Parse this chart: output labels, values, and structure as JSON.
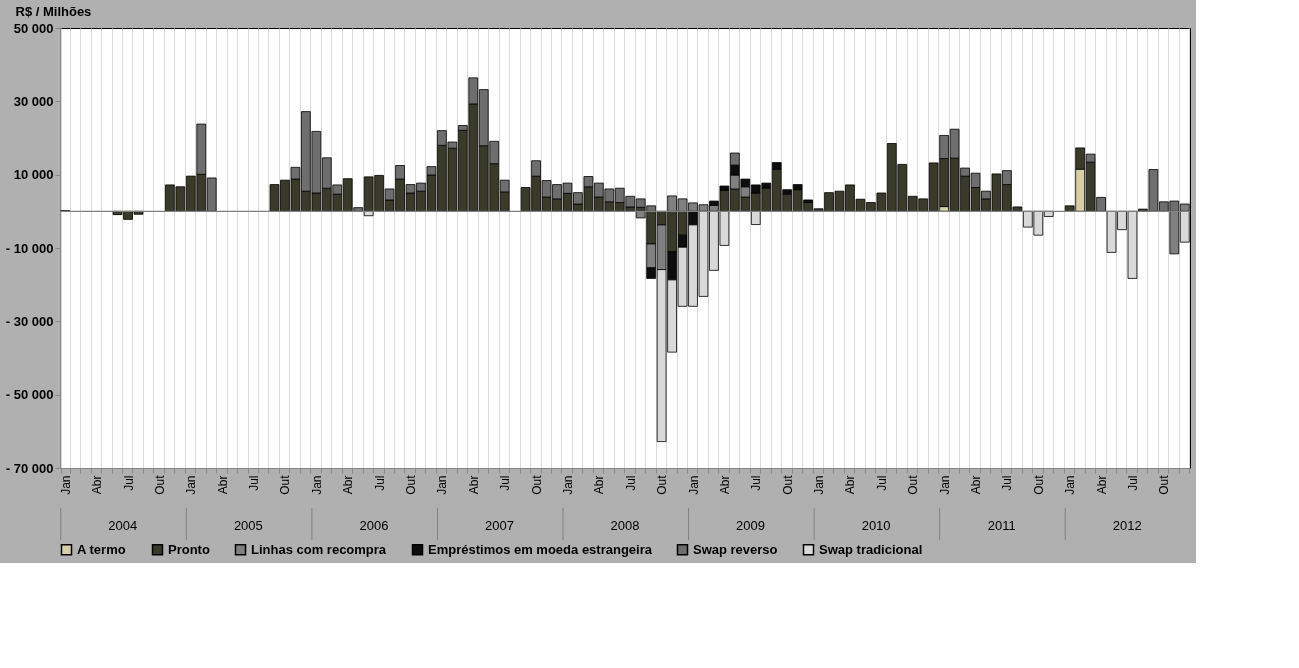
{
  "chart_data": {
    "type": "bar",
    "stacked": true,
    "ylabel": "R$ / Milhões",
    "categories": [
      "Jan",
      null,
      null,
      "Abr",
      null,
      null,
      "Jul",
      null,
      null,
      "Out",
      null,
      null,
      "Jan",
      null,
      null,
      "Abr",
      null,
      null,
      "Jul",
      null,
      null,
      "Out",
      null,
      null,
      "Jan",
      null,
      null,
      "Abr",
      null,
      null,
      "Jul",
      null,
      null,
      "Out",
      null,
      null,
      "Jan",
      null,
      null,
      "Abr",
      null,
      null,
      "Jul",
      null,
      null,
      "Out",
      null,
      null,
      "Jan",
      null,
      null,
      "Abr",
      null,
      null,
      "Jul",
      null,
      null,
      "Out",
      null,
      null,
      "Jan",
      null,
      null,
      "Abr",
      null,
      null,
      "Jul",
      null,
      null,
      "Out",
      null,
      null,
      "Jan",
      null,
      null,
      "Abr",
      null,
      null,
      "Jul",
      null,
      null,
      "Out",
      null,
      null,
      "Jan",
      null,
      null,
      "Abr",
      null,
      null,
      "Jul",
      null,
      null,
      "Out",
      null,
      null,
      "Jan",
      null,
      null,
      "Abr",
      null,
      null,
      "Jul",
      null,
      null,
      "Out",
      null,
      null
    ],
    "annotations": [
      "2004",
      "2005",
      "2006",
      "2007",
      "2008",
      "2009",
      "2010",
      "2011",
      "2012"
    ],
    "ylim": [
      -70000,
      50000
    ],
    "yticks": [
      {
        "value": 50000,
        "label": "50 000"
      },
      {
        "value": 30000,
        "label": "30 000"
      },
      {
        "value": 10000,
        "label": "10 000"
      },
      {
        "value": -10000,
        "label": "- 10 000"
      },
      {
        "value": -30000,
        "label": "- 30 000"
      },
      {
        "value": -50000,
        "label": "- 50 000"
      },
      {
        "value": -70000,
        "label": "- 70 000"
      }
    ],
    "ref_lines": [
      {
        "axis": "y",
        "value": 0,
        "color": "#808080"
      }
    ],
    "grid": "x",
    "legend": "bottom",
    "series": [
      {
        "name": "A termo",
        "color": "#d6cfa5",
        "values": [
          null,
          null,
          null,
          null,
          null,
          null,
          null,
          null,
          null,
          null,
          null,
          null,
          null,
          null,
          null,
          null,
          null,
          null,
          null,
          null,
          null,
          null,
          null,
          null,
          null,
          null,
          null,
          null,
          null,
          null,
          null,
          null,
          null,
          null,
          null,
          null,
          null,
          null,
          null,
          null,
          null,
          null,
          null,
          null,
          null,
          null,
          null,
          null,
          null,
          null,
          null,
          null,
          null,
          null,
          null,
          null,
          null,
          null,
          null,
          null,
          null,
          null,
          null,
          null,
          null,
          null,
          null,
          null,
          null,
          null,
          null,
          null,
          null,
          null,
          null,
          null,
          null,
          null,
          null,
          null,
          null,
          null,
          null,
          null,
          1300,
          null,
          null,
          null,
          null,
          null,
          null,
          null,
          null,
          null,
          null,
          null,
          null,
          11500,
          null,
          null,
          null,
          null,
          null,
          null,
          null,
          null,
          null,
          null
        ]
      },
      {
        "name": "Pronto",
        "color": "#3a3a2a",
        "values": [
          200,
          null,
          null,
          null,
          null,
          -900,
          -2200,
          -800,
          null,
          null,
          7200,
          6700,
          9600,
          10100,
          null,
          null,
          null,
          null,
          null,
          null,
          7300,
          8500,
          8800,
          5500,
          5000,
          6300,
          4700,
          8900,
          null,
          9400,
          9800,
          3100,
          8800,
          5000,
          5500,
          9900,
          18000,
          17200,
          22100,
          29300,
          17900,
          13000,
          5300,
          null,
          6500,
          9600,
          3900,
          3400,
          4900,
          2000,
          6700,
          3900,
          2600,
          2400,
          1200,
          1100,
          -8900,
          -3700,
          -11000,
          -6500,
          null,
          null,
          null,
          5700,
          6100,
          3900,
          5000,
          6300,
          11500,
          4700,
          5900,
          2400,
          700,
          5100,
          5500,
          7200,
          3300,
          2400,
          5000,
          18500,
          12800,
          4100,
          3400,
          13200,
          13100,
          14500,
          9600,
          6500,
          3400,
          10200,
          7300,
          1200,
          null,
          null,
          null,
          null,
          1500,
          5800,
          13400,
          null,
          null,
          null,
          null,
          600,
          null,
          null,
          null,
          null
        ]
      },
      {
        "name": "Linhas com recompra",
        "color": "#808080",
        "values": [
          null,
          null,
          null,
          null,
          null,
          null,
          null,
          null,
          null,
          null,
          null,
          null,
          null,
          null,
          null,
          null,
          null,
          null,
          null,
          null,
          null,
          null,
          null,
          null,
          null,
          null,
          null,
          null,
          null,
          null,
          null,
          null,
          null,
          null,
          null,
          null,
          null,
          null,
          null,
          null,
          null,
          null,
          null,
          null,
          null,
          null,
          null,
          null,
          null,
          null,
          null,
          null,
          null,
          null,
          null,
          -1800,
          -6500,
          -12200,
          4200,
          3400,
          2300,
          1800,
          1600,
          null,
          3800,
          2800,
          null,
          null,
          null,
          null,
          null,
          null,
          null,
          null,
          null,
          null,
          null,
          null,
          null,
          null,
          null,
          null,
          null,
          null,
          null,
          null,
          null,
          null,
          null,
          null,
          null,
          null,
          null,
          null,
          null,
          null,
          null,
          null,
          null,
          null,
          null,
          null,
          null,
          null,
          null,
          null,
          -11600,
          2000
        ]
      },
      {
        "name": "Empréstimos em moeda estrangeira",
        "color": "#0d0d0d",
        "values": [
          null,
          null,
          null,
          null,
          null,
          null,
          null,
          null,
          null,
          null,
          null,
          null,
          null,
          null,
          null,
          null,
          null,
          null,
          null,
          null,
          null,
          null,
          null,
          null,
          null,
          null,
          null,
          null,
          null,
          null,
          null,
          null,
          null,
          null,
          null,
          null,
          null,
          null,
          null,
          null,
          null,
          null,
          null,
          null,
          null,
          null,
          null,
          null,
          null,
          null,
          null,
          null,
          null,
          null,
          null,
          null,
          -2900,
          null,
          -7700,
          -3300,
          -3700,
          null,
          1200,
          1200,
          2700,
          2100,
          2200,
          1400,
          1800,
          1200,
          1400,
          700,
          null,
          null,
          null,
          null,
          null,
          null,
          null,
          null,
          null,
          null,
          null,
          null,
          null,
          null,
          null,
          null,
          null,
          null,
          null,
          null,
          null,
          null,
          null,
          null,
          null,
          null,
          null,
          null,
          null,
          null,
          null,
          null,
          null,
          null,
          null,
          null
        ]
      },
      {
        "name": "Swap reverso",
        "color": "#6e6e6e",
        "values": [
          null,
          null,
          null,
          null,
          null,
          null,
          null,
          null,
          null,
          null,
          null,
          null,
          null,
          13700,
          9100,
          null,
          null,
          null,
          null,
          null,
          null,
          null,
          3200,
          21700,
          16800,
          8300,
          2500,
          null,
          1000,
          null,
          null,
          3000,
          3700,
          2300,
          2200,
          2300,
          4000,
          1700,
          1300,
          7100,
          15300,
          6100,
          3200,
          null,
          null,
          4200,
          4500,
          3900,
          2800,
          3100,
          2800,
          3800,
          3500,
          3900,
          2900,
          2300,
          1500,
          null,
          null,
          null,
          null,
          null,
          null,
          null,
          3300,
          null,
          null,
          null,
          null,
          null,
          null,
          null,
          null,
          null,
          null,
          null,
          null,
          null,
          null,
          null,
          null,
          null,
          null,
          null,
          6300,
          7900,
          2200,
          3900,
          2100,
          null,
          3800,
          null,
          null,
          null,
          null,
          null,
          null,
          null,
          2200,
          3800,
          null,
          null,
          null,
          null,
          11400,
          2600,
          2800,
          null
        ]
      },
      {
        "name": "Swap tradicional",
        "color": "#d9d9d9",
        "values": [
          null,
          null,
          null,
          null,
          null,
          null,
          null,
          null,
          null,
          null,
          null,
          null,
          null,
          null,
          null,
          null,
          null,
          null,
          null,
          null,
          null,
          null,
          null,
          null,
          null,
          null,
          null,
          null,
          null,
          -1200,
          null,
          null,
          null,
          null,
          null,
          null,
          null,
          null,
          null,
          null,
          null,
          null,
          null,
          null,
          null,
          null,
          null,
          null,
          null,
          null,
          null,
          null,
          null,
          null,
          null,
          null,
          null,
          -46900,
          -19700,
          -16100,
          -22200,
          -23200,
          -16100,
          -9300,
          null,
          null,
          -3600,
          null,
          null,
          null,
          null,
          null,
          null,
          null,
          null,
          null,
          null,
          null,
          null,
          null,
          null,
          null,
          null,
          null,
          null,
          null,
          null,
          null,
          null,
          null,
          null,
          null,
          -4300,
          -6500,
          -1400,
          null,
          null,
          null,
          null,
          null,
          -11200,
          -5000,
          -18300,
          null,
          null,
          null,
          null,
          -8400
        ]
      }
    ]
  }
}
